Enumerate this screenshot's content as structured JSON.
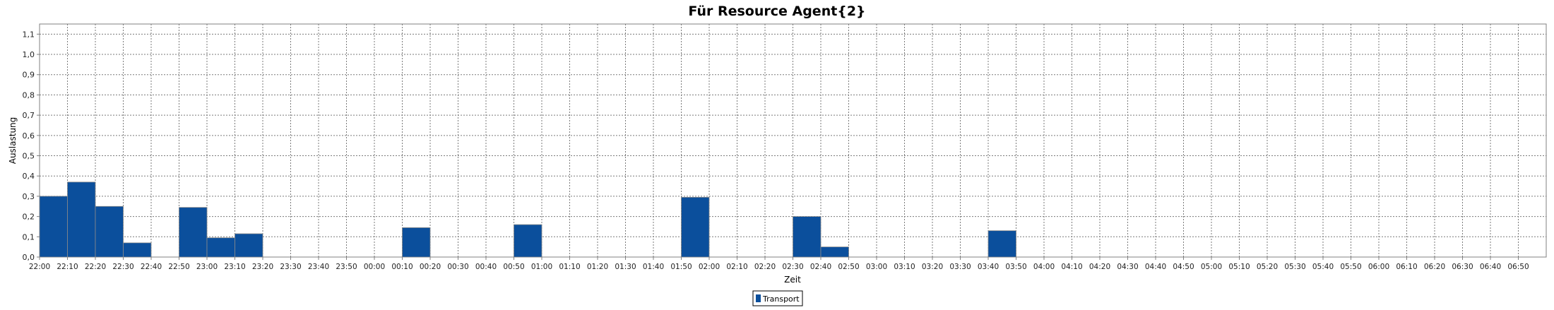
{
  "chart_data": {
    "type": "bar",
    "title": "Für Resource Agent{2}",
    "xlabel": "Zeit",
    "ylabel": "Auslastung",
    "ylim": [
      0,
      1.15
    ],
    "yticks": [
      "0,0",
      "0,1",
      "0,2",
      "0,3",
      "0,4",
      "0,5",
      "0,6",
      "0,7",
      "0,8",
      "0,9",
      "1,0",
      "1,1"
    ],
    "xticks": [
      "22:00",
      "22:10",
      "22:20",
      "22:30",
      "22:40",
      "22:50",
      "23:00",
      "23:10",
      "23:20",
      "23:30",
      "23:40",
      "23:50",
      "00:00",
      "00:10",
      "00:20",
      "00:30",
      "00:40",
      "00:50",
      "01:00",
      "01:10",
      "01:20",
      "01:30",
      "01:40",
      "01:50",
      "02:00",
      "02:10",
      "02:20",
      "02:30",
      "02:40",
      "02:50",
      "03:00",
      "03:10",
      "03:20",
      "03:30",
      "03:40",
      "03:50",
      "04:00",
      "04:10",
      "04:20",
      "04:30",
      "04:40",
      "04:50",
      "05:00",
      "05:10",
      "05:20",
      "05:30",
      "05:40",
      "05:50",
      "06:00",
      "06:10",
      "06:20",
      "06:30",
      "06:40",
      "06:50"
    ],
    "grid": true,
    "legend_position": "bottom-center",
    "series": [
      {
        "name": "Transport",
        "color": "#0b4f9c",
        "bars": [
          {
            "start": "22:00",
            "end": "22:10",
            "value": 0.3
          },
          {
            "start": "22:10",
            "end": "22:20",
            "value": 0.37
          },
          {
            "start": "22:20",
            "end": "22:30",
            "value": 0.25
          },
          {
            "start": "22:30",
            "end": "22:40",
            "value": 0.07
          },
          {
            "start": "22:50",
            "end": "23:00",
            "value": 0.245
          },
          {
            "start": "23:00",
            "end": "23:10",
            "value": 0.095
          },
          {
            "start": "23:10",
            "end": "23:20",
            "value": 0.115
          },
          {
            "start": "00:10",
            "end": "00:20",
            "value": 0.145
          },
          {
            "start": "00:50",
            "end": "01:00",
            "value": 0.16
          },
          {
            "start": "01:50",
            "end": "02:00",
            "value": 0.295
          },
          {
            "start": "02:30",
            "end": "02:40",
            "value": 0.2
          },
          {
            "start": "02:40",
            "end": "02:50",
            "value": 0.05
          },
          {
            "start": "03:40",
            "end": "03:50",
            "value": 0.13
          }
        ]
      }
    ]
  }
}
